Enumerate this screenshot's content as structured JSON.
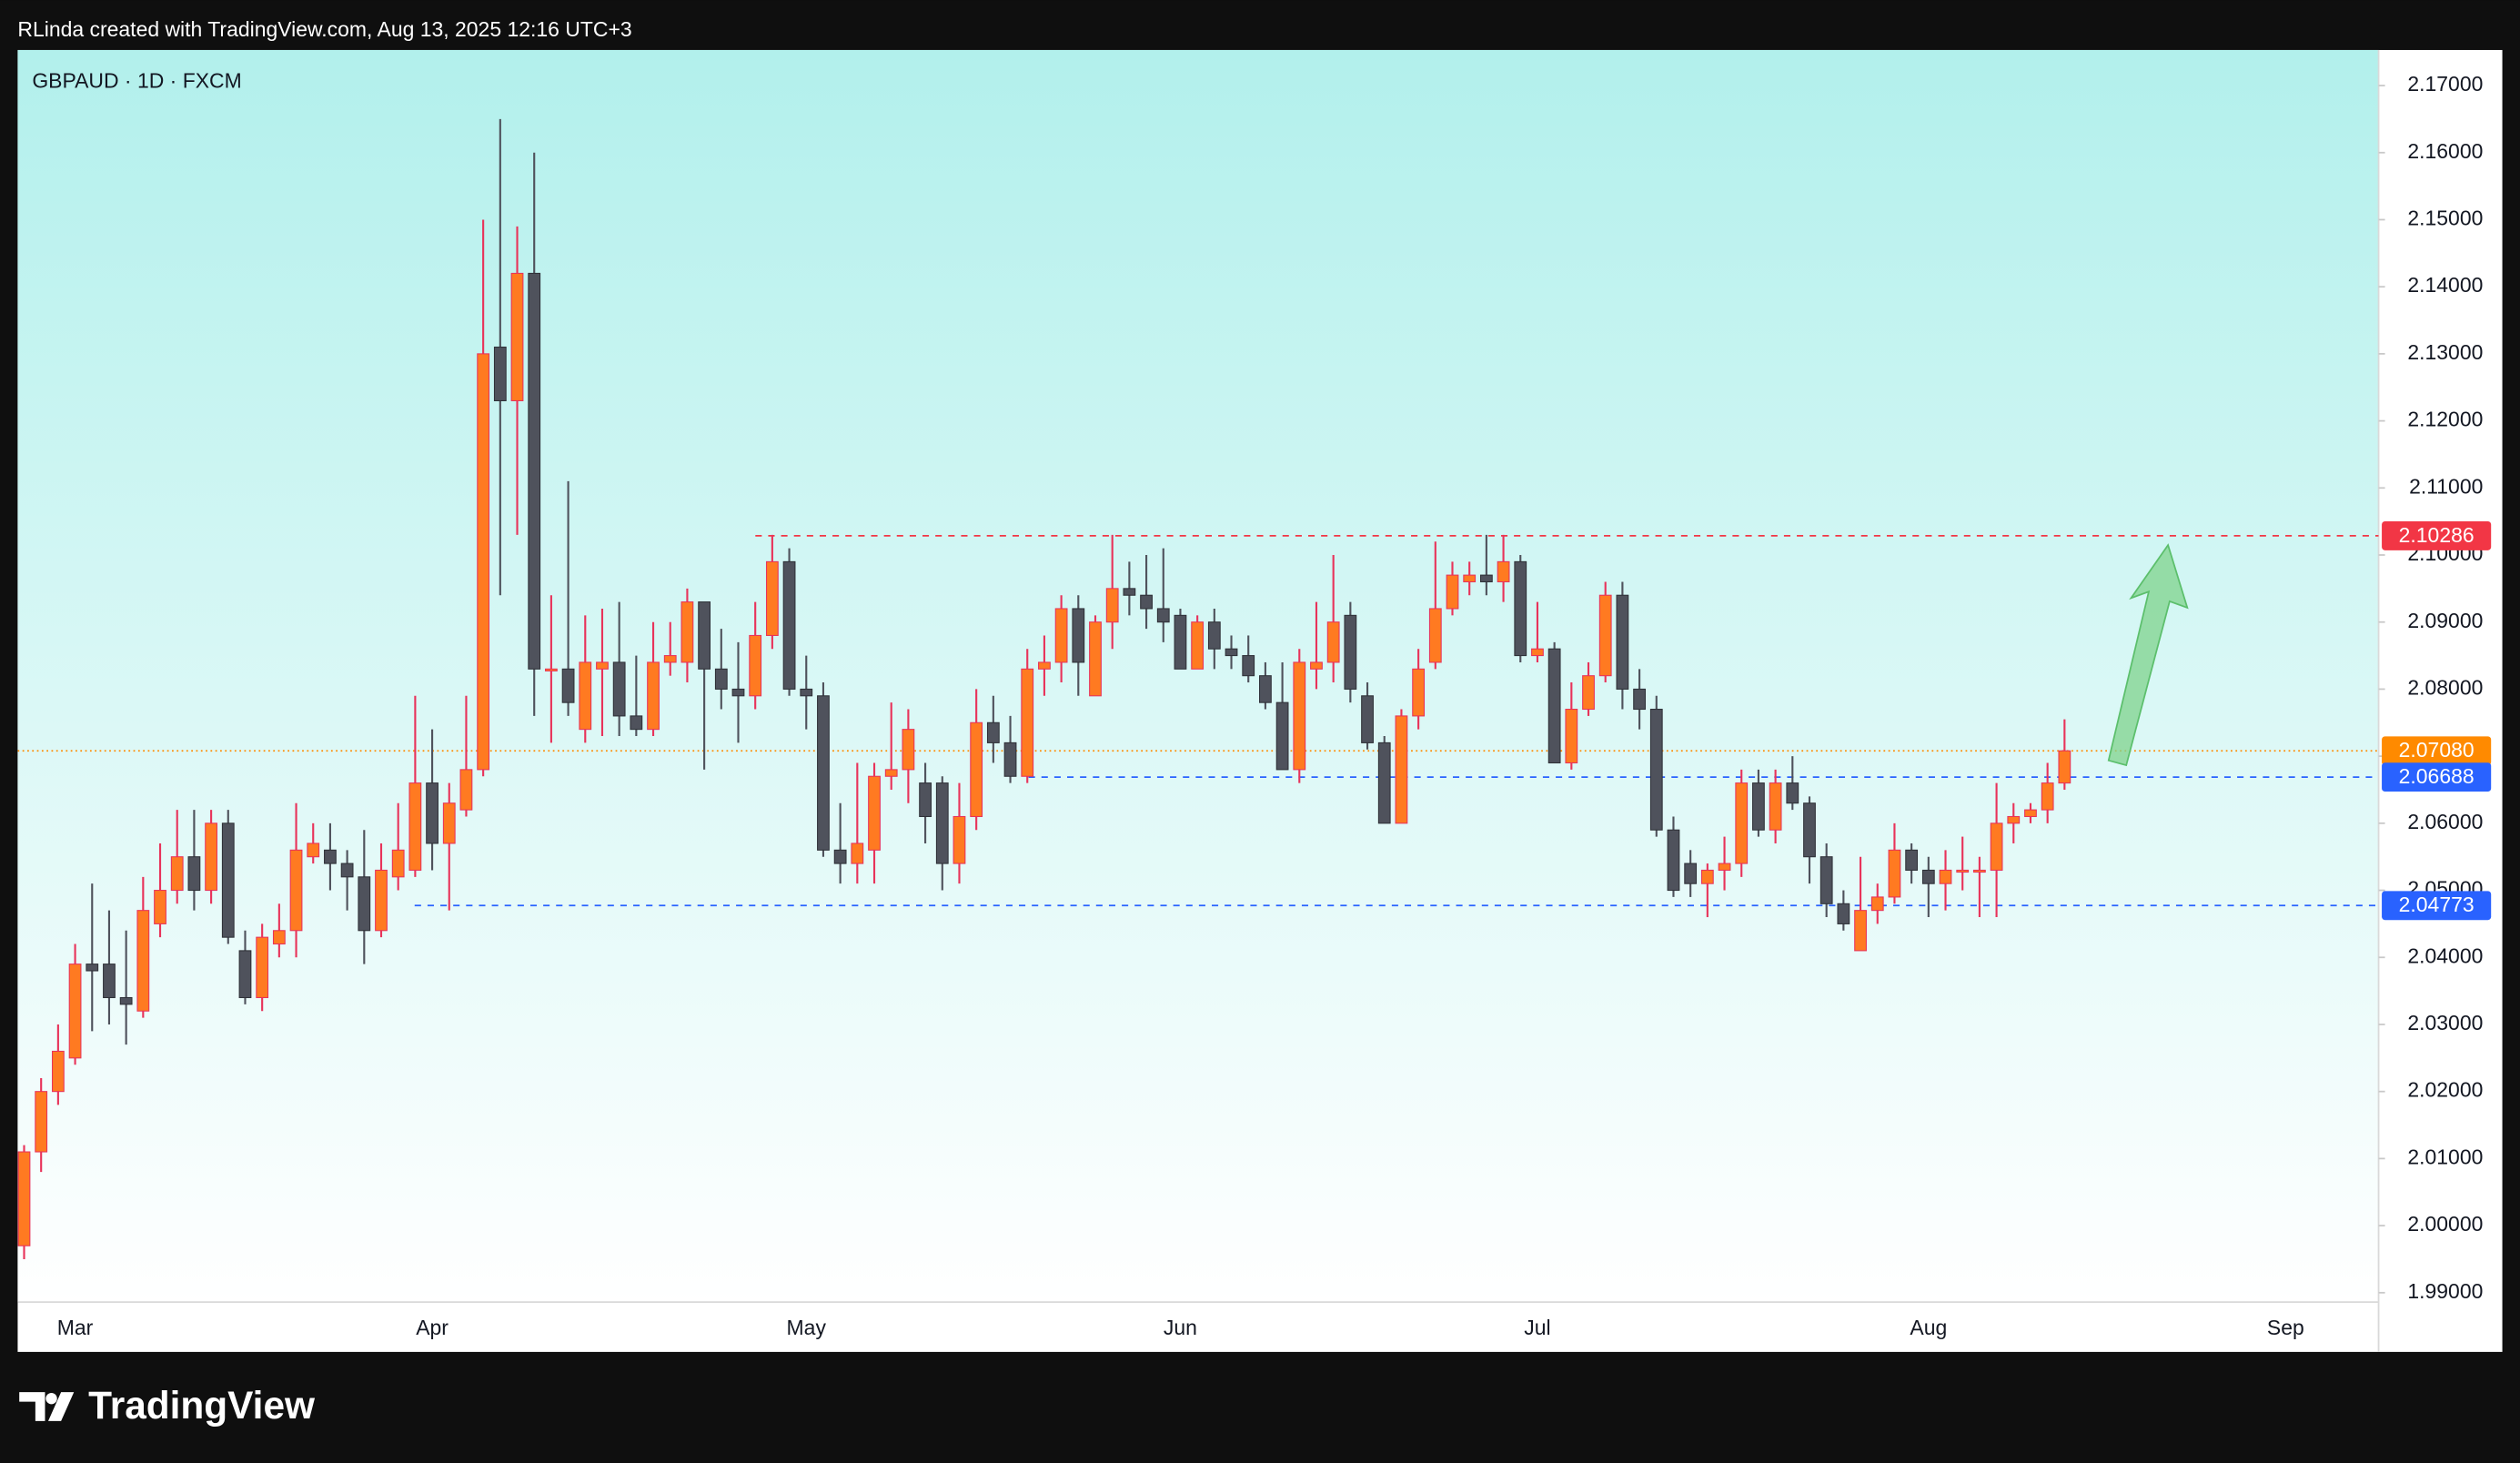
{
  "header": {
    "attribution": "RLinda created with TradingView.com, Aug 13, 2025 12:16 UTC+3"
  },
  "footer": {
    "brand": "TradingView"
  },
  "chart_data": {
    "type": "candlestick",
    "title": "GBPAUD · 1D · FXCM",
    "up_color": "#ff7a21",
    "up_wick_color": "#e8335a",
    "down_color": "#4f525c",
    "grid": false,
    "categories": [
      null,
      null,
      null,
      "Mar",
      null,
      null,
      null,
      null,
      null,
      null,
      null,
      null,
      null,
      null,
      null,
      null,
      null,
      null,
      null,
      null,
      null,
      null,
      null,
      null,
      "Apr",
      null,
      null,
      null,
      null,
      null,
      null,
      null,
      null,
      null,
      null,
      null,
      null,
      null,
      null,
      null,
      null,
      null,
      null,
      null,
      null,
      null,
      "May",
      null,
      null,
      null,
      null,
      null,
      null,
      null,
      null,
      null,
      null,
      null,
      null,
      null,
      null,
      null,
      null,
      null,
      null,
      null,
      null,
      null,
      "Jun",
      null,
      null,
      null,
      null,
      null,
      null,
      null,
      null,
      null,
      null,
      null,
      null,
      null,
      null,
      null,
      null,
      null,
      null,
      null,
      null,
      "Jul",
      null,
      null,
      null,
      null,
      null,
      null,
      null,
      null,
      null,
      null,
      null,
      null,
      null,
      null,
      null,
      null,
      null,
      null,
      null,
      null,
      null,
      null,
      "Aug",
      null,
      null,
      null,
      null,
      null,
      null,
      null,
      null,
      null,
      null,
      null,
      null,
      null,
      null,
      null,
      null,
      null,
      null,
      null,
      null,
      "Sep"
    ],
    "open": [
      1.997,
      2.011,
      2.02,
      2.025,
      2.039,
      2.039,
      2.034,
      2.032,
      2.045,
      2.05,
      2.055,
      2.05,
      2.06,
      2.041,
      2.034,
      2.042,
      2.044,
      2.055,
      2.056,
      2.054,
      2.052,
      2.044,
      2.052,
      2.053,
      2.066,
      2.057,
      2.062,
      2.068,
      2.131,
      2.123,
      2.142,
      2.083,
      2.083,
      2.074,
      2.083,
      2.084,
      2.076,
      2.074,
      2.084,
      2.084,
      2.093,
      2.083,
      2.08,
      2.079,
      2.088,
      2.099,
      2.08,
      2.079,
      2.056,
      2.054,
      2.056,
      2.067,
      2.068,
      2.066,
      2.066,
      2.054,
      2.061,
      2.075,
      2.072,
      2.067,
      2.083,
      2.084,
      2.092,
      2.079,
      2.09,
      2.095,
      2.094,
      2.092,
      2.091,
      2.083,
      2.09,
      2.086,
      2.085,
      2.082,
      2.078,
      2.068,
      2.083,
      2.084,
      2.091,
      2.079,
      2.072,
      2.06,
      2.076,
      2.084,
      2.092,
      2.096,
      2.097,
      2.096,
      2.099,
      2.085,
      2.086,
      2.069,
      2.077,
      2.082,
      2.094,
      2.08,
      2.077,
      2.059,
      2.054,
      2.051,
      2.053,
      2.054,
      2.066,
      2.059,
      2.066,
      2.063,
      2.055,
      2.048,
      2.041,
      2.047,
      2.049,
      2.056,
      2.053,
      2.051,
      2.053,
      2.053,
      2.053,
      2.06,
      2.061,
      2.062,
      2.066,
      null,
      null,
      null,
      null,
      null,
      null,
      null,
      null,
      null,
      null,
      null,
      null,
      null
    ],
    "high": [
      2.012,
      2.022,
      2.03,
      2.042,
      2.051,
      2.047,
      2.044,
      2.052,
      2.057,
      2.062,
      2.062,
      2.062,
      2.062,
      2.044,
      2.045,
      2.048,
      2.063,
      2.06,
      2.06,
      2.056,
      2.059,
      2.057,
      2.063,
      2.079,
      2.074,
      2.066,
      2.079,
      2.15,
      2.165,
      2.149,
      2.16,
      2.094,
      2.111,
      2.091,
      2.092,
      2.093,
      2.085,
      2.09,
      2.09,
      2.095,
      2.093,
      2.089,
      2.087,
      2.093,
      2.103,
      2.101,
      2.085,
      2.081,
      2.063,
      2.069,
      2.069,
      2.078,
      2.077,
      2.069,
      2.067,
      2.066,
      2.08,
      2.079,
      2.076,
      2.086,
      2.088,
      2.094,
      2.094,
      2.091,
      2.103,
      2.099,
      2.1,
      2.101,
      2.092,
      2.091,
      2.092,
      2.088,
      2.088,
      2.084,
      2.084,
      2.086,
      2.093,
      2.1,
      2.093,
      2.081,
      2.073,
      2.077,
      2.086,
      2.102,
      2.099,
      2.099,
      2.103,
      2.103,
      2.1,
      2.093,
      2.087,
      2.081,
      2.084,
      2.096,
      2.096,
      2.083,
      2.079,
      2.061,
      2.056,
      2.054,
      2.058,
      2.068,
      2.068,
      2.068,
      2.07,
      2.064,
      2.057,
      2.05,
      2.055,
      2.051,
      2.06,
      2.057,
      2.055,
      2.056,
      2.058,
      2.055,
      2.066,
      2.063,
      2.063,
      2.069,
      2.0755,
      null,
      null,
      null,
      null,
      null,
      null,
      null,
      null,
      null,
      null,
      null,
      null,
      null
    ],
    "low": [
      1.995,
      2.008,
      2.018,
      2.024,
      2.029,
      2.03,
      2.027,
      2.031,
      2.043,
      2.048,
      2.047,
      2.048,
      2.042,
      2.033,
      2.032,
      2.04,
      2.04,
      2.054,
      2.05,
      2.047,
      2.039,
      2.043,
      2.05,
      2.052,
      2.053,
      2.047,
      2.061,
      2.067,
      2.094,
      2.103,
      2.076,
      2.072,
      2.076,
      2.072,
      2.073,
      2.073,
      2.073,
      2.073,
      2.082,
      2.081,
      2.068,
      2.077,
      2.072,
      2.077,
      2.086,
      2.079,
      2.074,
      2.055,
      2.051,
      2.051,
      2.051,
      2.065,
      2.063,
      2.057,
      2.05,
      2.051,
      2.059,
      2.069,
      2.066,
      2.066,
      2.079,
      2.081,
      2.079,
      2.079,
      2.086,
      2.091,
      2.089,
      2.087,
      2.083,
      2.083,
      2.083,
      2.083,
      2.081,
      2.077,
      2.068,
      2.066,
      2.08,
      2.081,
      2.078,
      2.071,
      2.06,
      2.06,
      2.074,
      2.083,
      2.091,
      2.094,
      2.094,
      2.093,
      2.084,
      2.084,
      2.069,
      2.068,
      2.076,
      2.081,
      2.077,
      2.074,
      2.058,
      2.049,
      2.049,
      2.046,
      2.05,
      2.052,
      2.058,
      2.057,
      2.062,
      2.051,
      2.046,
      2.044,
      2.041,
      2.045,
      2.048,
      2.051,
      2.046,
      2.047,
      2.05,
      2.046,
      2.046,
      2.057,
      2.06,
      2.06,
      2.065,
      null,
      null,
      null,
      null,
      null,
      null,
      null,
      null,
      null,
      null,
      null,
      null,
      null
    ],
    "close": [
      2.011,
      2.02,
      2.026,
      2.039,
      2.038,
      2.034,
      2.033,
      2.047,
      2.05,
      2.055,
      2.05,
      2.06,
      2.043,
      2.034,
      2.043,
      2.044,
      2.056,
      2.057,
      2.054,
      2.052,
      2.044,
      2.053,
      2.056,
      2.066,
      2.057,
      2.063,
      2.068,
      2.13,
      2.123,
      2.142,
      2.083,
      2.083,
      2.078,
      2.084,
      2.084,
      2.076,
      2.074,
      2.084,
      2.085,
      2.093,
      2.083,
      2.08,
      2.079,
      2.088,
      2.099,
      2.08,
      2.079,
      2.056,
      2.054,
      2.057,
      2.067,
      2.068,
      2.074,
      2.061,
      2.054,
      2.061,
      2.075,
      2.072,
      2.067,
      2.083,
      2.084,
      2.092,
      2.084,
      2.09,
      2.095,
      2.094,
      2.092,
      2.09,
      2.083,
      2.09,
      2.086,
      2.085,
      2.082,
      2.078,
      2.068,
      2.084,
      2.084,
      2.09,
      2.08,
      2.072,
      2.06,
      2.076,
      2.083,
      2.092,
      2.097,
      2.097,
      2.096,
      2.099,
      2.085,
      2.086,
      2.069,
      2.077,
      2.082,
      2.094,
      2.08,
      2.077,
      2.059,
      2.05,
      2.051,
      2.053,
      2.054,
      2.066,
      2.059,
      2.066,
      2.063,
      2.055,
      2.048,
      2.045,
      2.047,
      2.049,
      2.056,
      2.053,
      2.051,
      2.053,
      2.053,
      2.053,
      2.06,
      2.061,
      2.062,
      2.066,
      2.0708,
      null,
      null,
      null,
      null,
      null,
      null,
      null,
      null,
      null,
      null,
      null,
      null,
      null
    ],
    "ylim": [
      1.9886,
      2.1753
    ],
    "yticks": [
      {
        "value": 1.99,
        "label": "1.99000"
      },
      {
        "value": 2.0,
        "label": "2.00000"
      },
      {
        "value": 2.01,
        "label": "2.01000"
      },
      {
        "value": 2.02,
        "label": "2.02000"
      },
      {
        "value": 2.03,
        "label": "2.03000"
      },
      {
        "value": 2.04,
        "label": "2.04000"
      },
      {
        "value": 2.05,
        "label": "2.05000"
      },
      {
        "value": 2.06,
        "label": "2.06000"
      },
      {
        "value": 2.07,
        "label": "2.07000"
      },
      {
        "value": 2.08,
        "label": "2.08000"
      },
      {
        "value": 2.09,
        "label": "2.09000"
      },
      {
        "value": 2.1,
        "label": "2.10000"
      },
      {
        "value": 2.11,
        "label": "2.11000"
      },
      {
        "value": 2.12,
        "label": "2.12000"
      },
      {
        "value": 2.13,
        "label": "2.13000"
      },
      {
        "value": 2.14,
        "label": "2.14000"
      },
      {
        "value": 2.15,
        "label": "2.15000"
      },
      {
        "value": 2.16,
        "label": "2.16000"
      },
      {
        "value": 2.17,
        "label": "2.17000"
      }
    ],
    "levels": [
      {
        "value": 2.0708,
        "label": "2.07080",
        "color": "#ff8a00",
        "style": "dotted"
      },
      {
        "value": 2.10286,
        "label": "2.10286",
        "color": "#f23645",
        "style": "dashed"
      },
      {
        "value": 2.06688,
        "label": "2.06688",
        "color": "#2962ff",
        "style": "dashed"
      },
      {
        "value": 2.04773,
        "label": "2.04773",
        "color": "#2962ff",
        "style": "dashed"
      }
    ]
  }
}
